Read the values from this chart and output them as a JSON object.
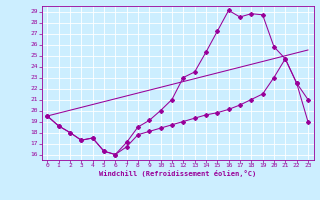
{
  "xlabel": "Windchill (Refroidissement éolien,°C)",
  "bg_color": "#cceeff",
  "line_color": "#990099",
  "grid_color": "#ffffff",
  "xlim": [
    -0.5,
    23.5
  ],
  "ylim": [
    15.5,
    29.5
  ],
  "xticks": [
    0,
    1,
    2,
    3,
    4,
    5,
    6,
    7,
    8,
    9,
    10,
    11,
    12,
    13,
    14,
    15,
    16,
    17,
    18,
    19,
    20,
    21,
    22,
    23
  ],
  "yticks": [
    16,
    17,
    18,
    19,
    20,
    21,
    22,
    23,
    24,
    25,
    26,
    27,
    28,
    29
  ],
  "line1_x": [
    0,
    1,
    2,
    3,
    4,
    5,
    6,
    7,
    8,
    9,
    10,
    11,
    12,
    13,
    14,
    15,
    16,
    17,
    18,
    19,
    20,
    21,
    22,
    23
  ],
  "line1_y": [
    19.5,
    18.6,
    18.0,
    17.3,
    17.5,
    16.3,
    16.0,
    17.1,
    18.5,
    19.1,
    20.0,
    21.0,
    23.0,
    23.5,
    25.3,
    27.2,
    29.1,
    28.5,
    28.8,
    28.7,
    25.8,
    24.7,
    22.5,
    21.0
  ],
  "line2_x": [
    0,
    1,
    2,
    3,
    4,
    5,
    6,
    7,
    8,
    9,
    10,
    11,
    12,
    13,
    14,
    15,
    16,
    17,
    18,
    19,
    20,
    21,
    22,
    23
  ],
  "line2_y": [
    19.5,
    18.6,
    18.0,
    17.3,
    17.5,
    16.3,
    16.0,
    16.7,
    17.8,
    18.1,
    18.4,
    18.7,
    19.0,
    19.3,
    19.6,
    19.8,
    20.1,
    20.5,
    21.0,
    21.5,
    23.0,
    24.7,
    22.5,
    19.0
  ],
  "line3_x": [
    0,
    23
  ],
  "line3_y": [
    19.5,
    25.5
  ]
}
